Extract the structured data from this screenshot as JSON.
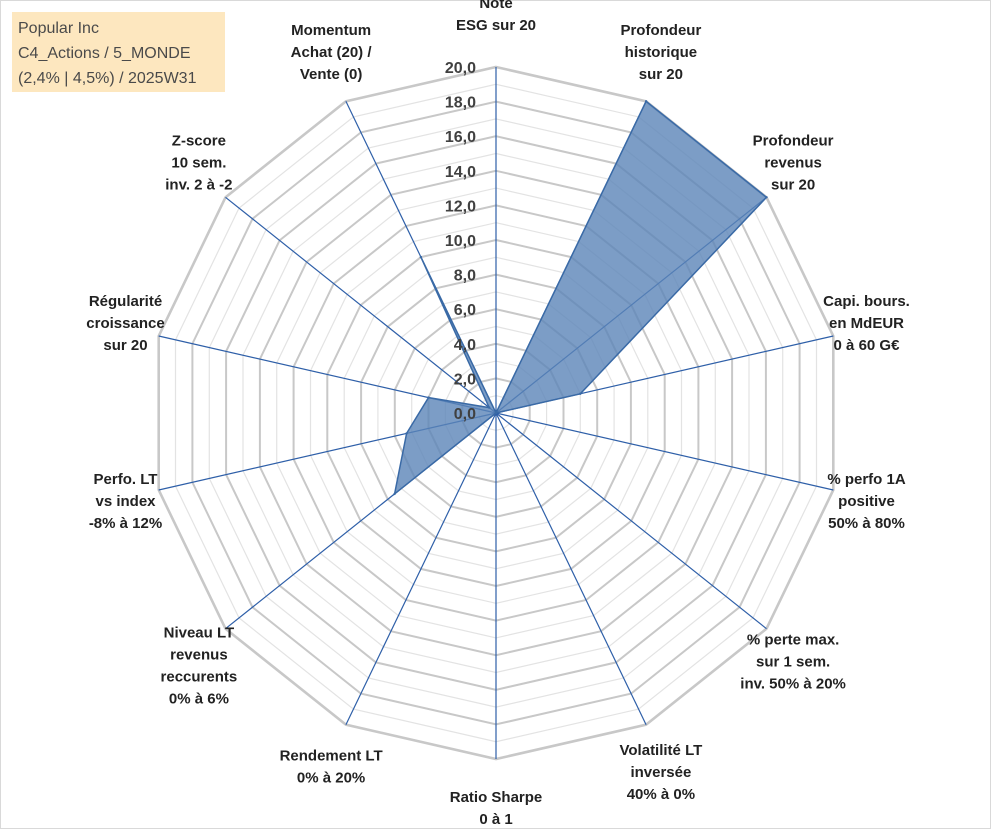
{
  "title_box": {
    "line1": "Popular Inc",
    "line2": "C4_Actions / 5_MONDE",
    "line3": "(2,4% | 4,5%) / 2025W31"
  },
  "chart_data": {
    "type": "radar",
    "axes": [
      [
        "Note",
        "ESG sur 20"
      ],
      [
        "Profondeur",
        "historique",
        "sur 20"
      ],
      [
        "Profondeur",
        "revenus",
        "sur 20"
      ],
      [
        "Capi. bours.",
        "en MdEUR",
        "0 à 60 G€"
      ],
      [
        "% perfo 1A",
        "positive",
        "50% à 80%"
      ],
      [
        "% perte max.",
        "sur 1 sem.",
        "inv. 50% à 20%"
      ],
      [
        "Volatilité LT",
        "inversée",
        "40% à 0%"
      ],
      [
        "Ratio Sharpe",
        "0 à 1"
      ],
      [
        "Rendement LT",
        "0% à 20%"
      ],
      [
        "Niveau LT",
        "revenus",
        "reccurents",
        "0% à 6%"
      ],
      [
        "Perfo. LT",
        "vs index",
        "-8% à 12%"
      ],
      [
        "Régularité",
        "croissance",
        "sur 20"
      ],
      [
        "Z-score",
        "10 sem.",
        "inv. 2 à -2"
      ],
      [
        "Momentum",
        "Achat (20) /",
        "Vente (0)"
      ]
    ],
    "values": [
      0,
      20,
      20,
      5,
      0,
      0,
      0,
      0,
      0,
      7.5,
      5.3,
      4,
      0.5,
      10
    ],
    "rmin": 0,
    "rmax": 20,
    "ticks": [
      "0,0",
      "2,0",
      "4,0",
      "6,0",
      "8,0",
      "10,0",
      "12,0",
      "14,0",
      "16,0",
      "18,0",
      "20,0"
    ],
    "minor_step": 1,
    "fill_color": "#5b84b8",
    "stroke_color": "#3a6aa6",
    "grid_color": "#c8c8c8",
    "spoke_color": "#2e5fa8"
  }
}
